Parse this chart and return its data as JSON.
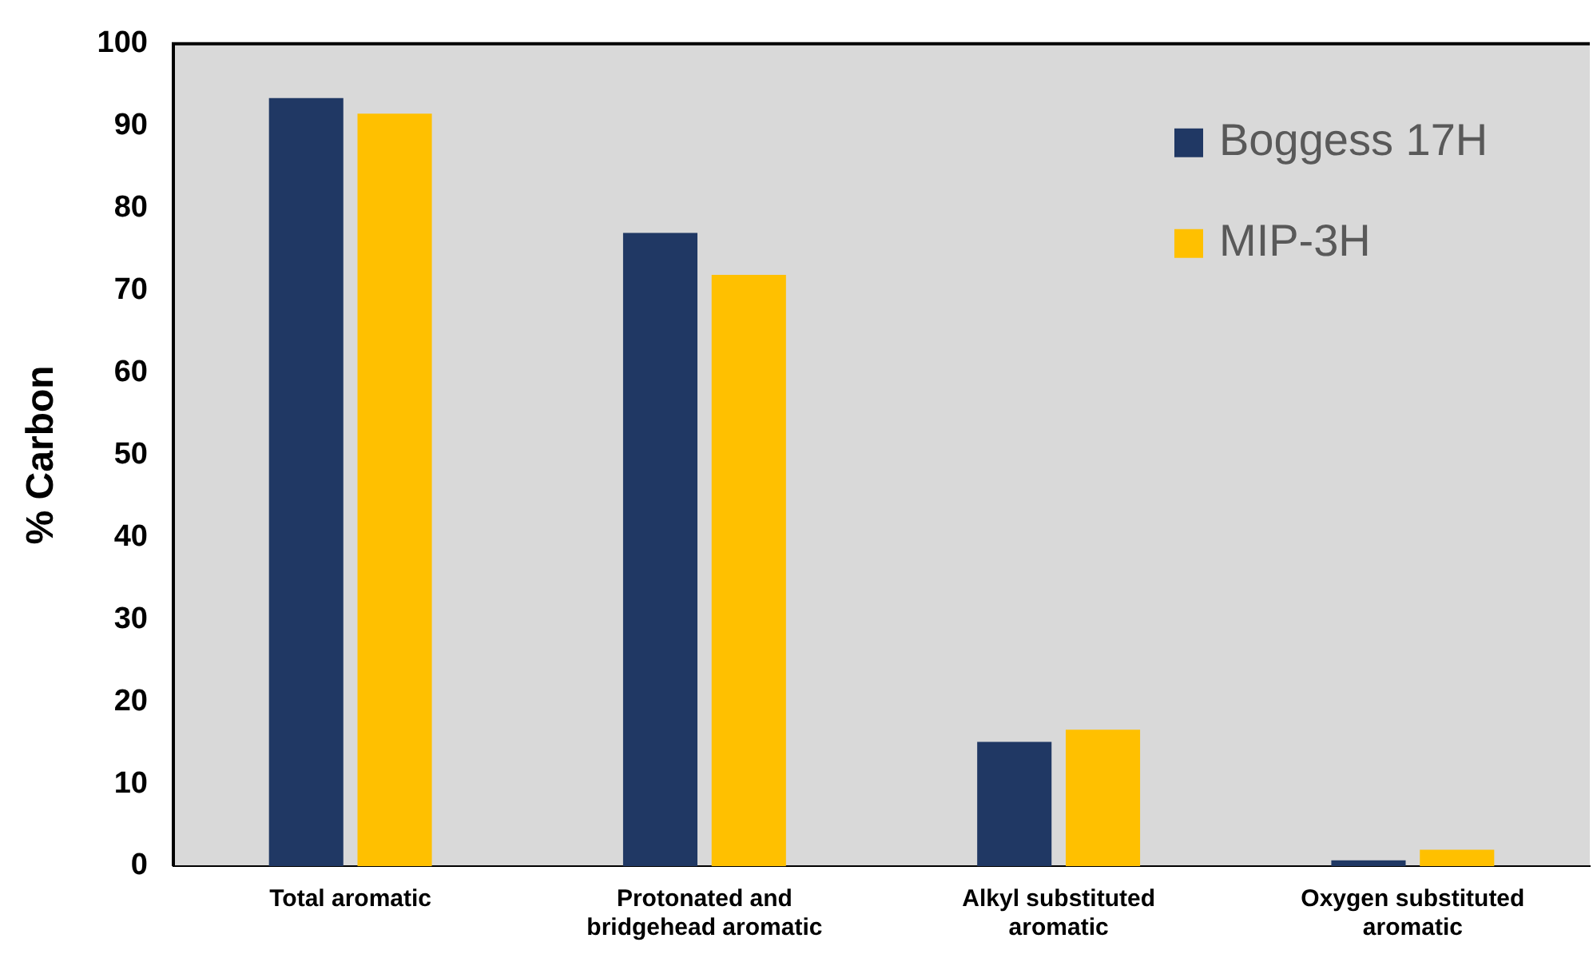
{
  "chart_data": {
    "type": "bar",
    "ylabel": "% Carbon",
    "categories": [
      "Total aromatic",
      "Protonated and bridgehead aromatic",
      "Alkyl substituted aromatic",
      "Oxygen substituted aromatic"
    ],
    "series": [
      {
        "name": "Boggess 17H",
        "color": "#203864",
        "values": [
          93.4,
          77.0,
          15.1,
          0.7
        ]
      },
      {
        "name": "MIP-3H",
        "color": "#ffc000",
        "values": [
          91.5,
          71.9,
          16.6,
          2.0
        ]
      }
    ],
    "ylim": [
      0,
      100
    ],
    "yticks": [
      0,
      10,
      20,
      30,
      40,
      50,
      60,
      70,
      80,
      90,
      100
    ],
    "grid": false,
    "legend": "top right"
  }
}
